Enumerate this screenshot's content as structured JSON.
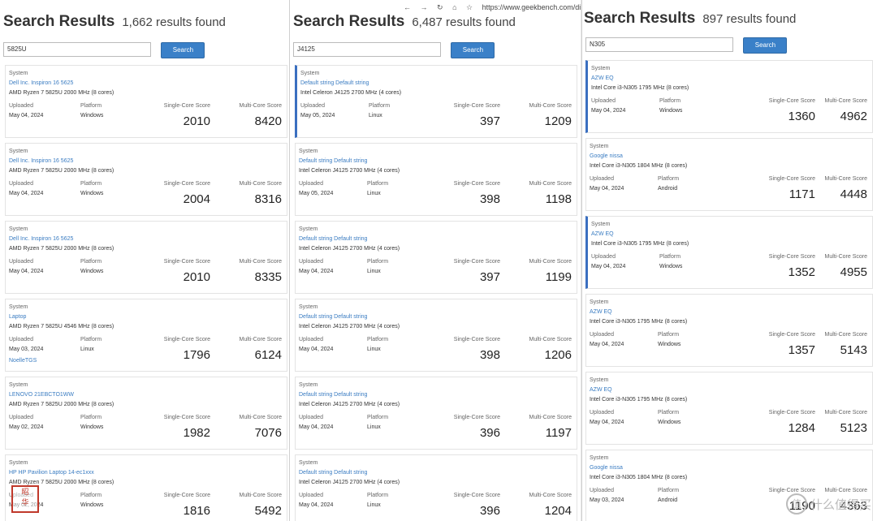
{
  "browser": {
    "back_icon": "back-icon",
    "forward_icon": "forward-icon",
    "refresh_icon": "refresh-icon",
    "home_icon": "home-icon",
    "star_icon": "star-icon",
    "url": "https://www.geekbench.com/di"
  },
  "panels": [
    {
      "title": "Search Results",
      "count": "1,662 results found",
      "query": "5825U",
      "search_label": "Search",
      "results": [
        {
          "system_label": "System",
          "system": "Dell Inc. Inspiron 16 5625",
          "cpu": "AMD Ryzen 7 5825U 2000 MHz (8 cores)",
          "uploaded_label": "Uploaded",
          "uploaded": "May 04, 2024",
          "platform_label": "Platform",
          "platform": "Windows",
          "single_label": "Single-Core Score",
          "single": "2010",
          "multi_label": "Multi-Core Score",
          "multi": "8420",
          "user": ""
        },
        {
          "system_label": "System",
          "system": "Dell Inc. Inspiron 16 5625",
          "cpu": "AMD Ryzen 7 5825U 2000 MHz (8 cores)",
          "uploaded_label": "Uploaded",
          "uploaded": "May 04, 2024",
          "platform_label": "Platform",
          "platform": "Windows",
          "single_label": "Single-Core Score",
          "single": "2004",
          "multi_label": "Multi-Core Score",
          "multi": "8316",
          "user": ""
        },
        {
          "system_label": "System",
          "system": "Dell Inc. Inspiron 16 5625",
          "cpu": "AMD Ryzen 7 5825U 2000 MHz (8 cores)",
          "uploaded_label": "Uploaded",
          "uploaded": "May 04, 2024",
          "platform_label": "Platform",
          "platform": "Windows",
          "single_label": "Single-Core Score",
          "single": "2010",
          "multi_label": "Multi-Core Score",
          "multi": "8335",
          "user": ""
        },
        {
          "system_label": "System",
          "system": "Laptop",
          "cpu": "AMD Ryzen 7 5825U 4546 MHz (8 cores)",
          "uploaded_label": "Uploaded",
          "uploaded": "May 03, 2024",
          "platform_label": "Platform",
          "platform": "Linux",
          "single_label": "Single-Core Score",
          "single": "1796",
          "multi_label": "Multi-Core Score",
          "multi": "6124",
          "user": "NoelleTGS"
        },
        {
          "system_label": "System",
          "system": "LENOVO 21EBCTO1WW",
          "cpu": "AMD Ryzen 7 5825U 2000 MHz (8 cores)",
          "uploaded_label": "Uploaded",
          "uploaded": "May 02, 2024",
          "platform_label": "Platform",
          "platform": "Windows",
          "single_label": "Single-Core Score",
          "single": "1982",
          "multi_label": "Multi-Core Score",
          "multi": "7076",
          "user": ""
        },
        {
          "system_label": "System",
          "system": "HP HP Pavilion Laptop 14-ec1xxx",
          "cpu": "AMD Ryzen 7 5825U 2000 MHz (8 cores)",
          "uploaded_label": "Uploaded",
          "uploaded": "May 02, 2024",
          "platform_label": "Platform",
          "platform": "Windows",
          "single_label": "Single-Core Score",
          "single": "1816",
          "multi_label": "Multi-Core Score",
          "multi": "5492",
          "user": ""
        }
      ]
    },
    {
      "title": "Search Results",
      "count": "6,487 results found",
      "query": "J4125",
      "search_label": "Search",
      "results": [
        {
          "system_label": "System",
          "system": "Default string Default string",
          "cpu": "Intel Celeron J4125 2700 MHz (4 cores)",
          "uploaded_label": "Uploaded",
          "uploaded": "May 05, 2024",
          "platform_label": "Platform",
          "platform": "Linux",
          "single_label": "Single-Core Score",
          "single": "397",
          "multi_label": "Multi-Core Score",
          "multi": "1209",
          "user": ""
        },
        {
          "system_label": "System",
          "system": "Default string Default string",
          "cpu": "Intel Celeron J4125 2700 MHz (4 cores)",
          "uploaded_label": "Uploaded",
          "uploaded": "May 05, 2024",
          "platform_label": "Platform",
          "platform": "Linux",
          "single_label": "Single-Core Score",
          "single": "398",
          "multi_label": "Multi-Core Score",
          "multi": "1198",
          "user": ""
        },
        {
          "system_label": "System",
          "system": "Default string Default string",
          "cpu": "Intel Celeron J4125 2700 MHz (4 cores)",
          "uploaded_label": "Uploaded",
          "uploaded": "May 04, 2024",
          "platform_label": "Platform",
          "platform": "Linux",
          "single_label": "Single-Core Score",
          "single": "397",
          "multi_label": "Multi-Core Score",
          "multi": "1199",
          "user": ""
        },
        {
          "system_label": "System",
          "system": "Default string Default string",
          "cpu": "Intel Celeron J4125 2700 MHz (4 cores)",
          "uploaded_label": "Uploaded",
          "uploaded": "May 04, 2024",
          "platform_label": "Platform",
          "platform": "Linux",
          "single_label": "Single-Core Score",
          "single": "398",
          "multi_label": "Multi-Core Score",
          "multi": "1206",
          "user": ""
        },
        {
          "system_label": "System",
          "system": "Default string Default string",
          "cpu": "Intel Celeron J4125 2700 MHz (4 cores)",
          "uploaded_label": "Uploaded",
          "uploaded": "May 04, 2024",
          "platform_label": "Platform",
          "platform": "Linux",
          "single_label": "Single-Core Score",
          "single": "396",
          "multi_label": "Multi-Core Score",
          "multi": "1197",
          "user": ""
        },
        {
          "system_label": "System",
          "system": "Default string Default string",
          "cpu": "Intel Celeron J4125 2700 MHz (4 cores)",
          "uploaded_label": "Uploaded",
          "uploaded": "May 04, 2024",
          "platform_label": "Platform",
          "platform": "Linux",
          "single_label": "Single-Core Score",
          "single": "396",
          "multi_label": "Multi-Core Score",
          "multi": "1204",
          "user": ""
        }
      ]
    },
    {
      "title": "Search Results",
      "count": "897 results found",
      "query": "N305",
      "search_label": "Search",
      "results": [
        {
          "system_label": "System",
          "system": "AZW EQ",
          "cpu": "Intel Core i3-N305 1795 MHz (8 cores)",
          "uploaded_label": "Uploaded",
          "uploaded": "May 04, 2024",
          "platform_label": "Platform",
          "platform": "Windows",
          "single_label": "Single-Core Score",
          "single": "1360",
          "multi_label": "Multi-Core Score",
          "multi": "4962",
          "user": ""
        },
        {
          "system_label": "System",
          "system": "Google nissa",
          "cpu": "Intel Core i3-N305 1804 MHz (8 cores)",
          "uploaded_label": "Uploaded",
          "uploaded": "May 04, 2024",
          "platform_label": "Platform",
          "platform": "Android",
          "single_label": "Single-Core Score",
          "single": "1171",
          "multi_label": "Multi-Core Score",
          "multi": "4448",
          "user": ""
        },
        {
          "system_label": "System",
          "system": "AZW EQ",
          "cpu": "Intel Core i3-N305 1795 MHz (8 cores)",
          "uploaded_label": "Uploaded",
          "uploaded": "May 04, 2024",
          "platform_label": "Platform",
          "platform": "Windows",
          "single_label": "Single-Core Score",
          "single": "1352",
          "multi_label": "Multi-Core Score",
          "multi": "4955",
          "user": ""
        },
        {
          "system_label": "System",
          "system": "AZW EQ",
          "cpu": "Intel Core i3-N305 1795 MHz (8 cores)",
          "uploaded_label": "Uploaded",
          "uploaded": "May 04, 2024",
          "platform_label": "Platform",
          "platform": "Windows",
          "single_label": "Single-Core Score",
          "single": "1357",
          "multi_label": "Multi-Core Score",
          "multi": "5143",
          "user": ""
        },
        {
          "system_label": "System",
          "system": "AZW EQ",
          "cpu": "Intel Core i3-N305 1795 MHz (8 cores)",
          "uploaded_label": "Uploaded",
          "uploaded": "May 04, 2024",
          "platform_label": "Platform",
          "platform": "Windows",
          "single_label": "Single-Core Score",
          "single": "1284",
          "multi_label": "Multi-Core Score",
          "multi": "5123",
          "user": ""
        },
        {
          "system_label": "System",
          "system": "Google nissa",
          "cpu": "Intel Core i3-N305 1804 MHz (8 cores)",
          "uploaded_label": "Uploaded",
          "uploaded": "May 03, 2024",
          "platform_label": "Platform",
          "platform": "Android",
          "single_label": "Single-Core Score",
          "single": "1190",
          "multi_label": "Multi-Core Score",
          "multi": "4363",
          "user": ""
        }
      ]
    }
  ],
  "watermark": {
    "logo_icon": "zhidemai-logo-icon",
    "text": "什么值得买"
  },
  "seal": {
    "text": "昭华"
  }
}
